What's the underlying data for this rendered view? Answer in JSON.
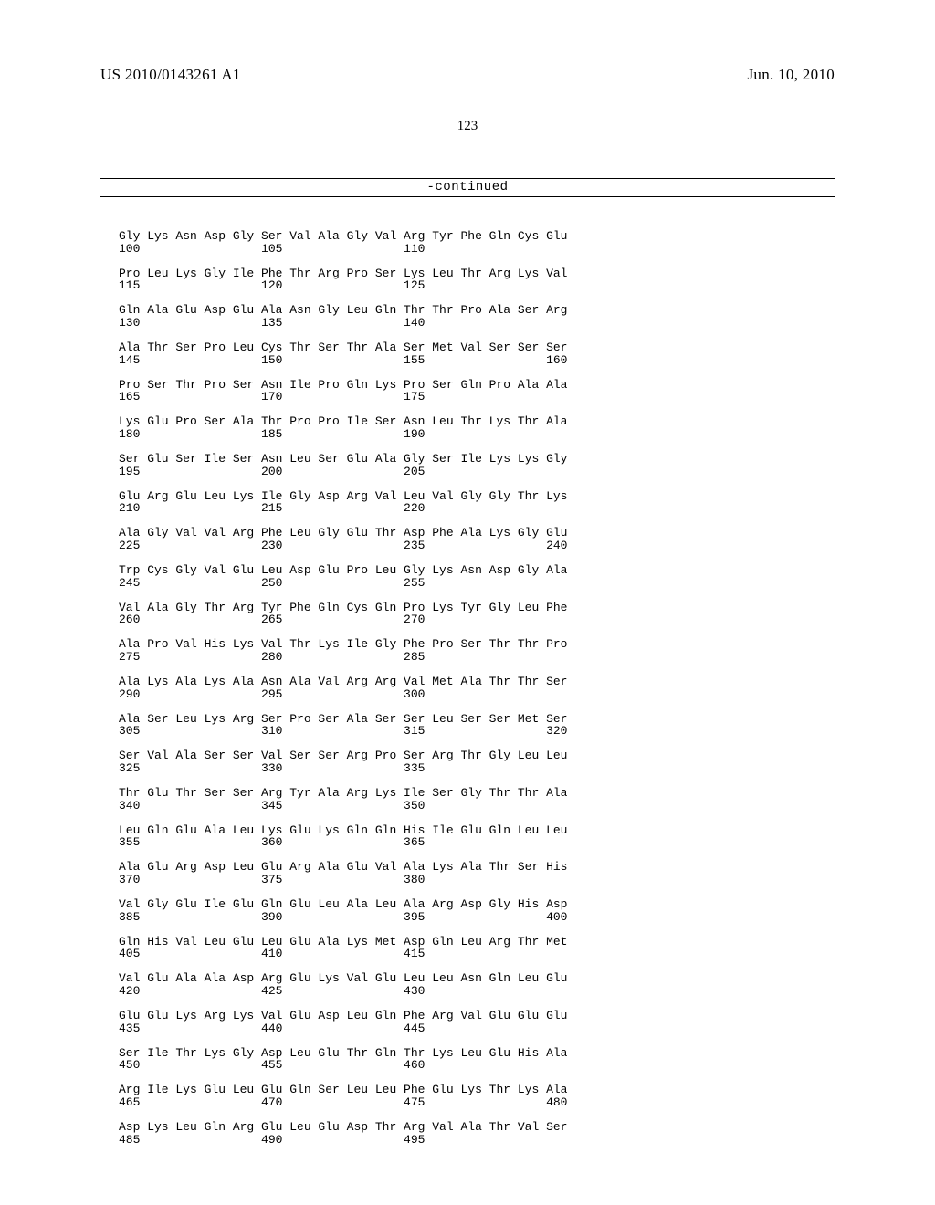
{
  "header": {
    "publication_number": "US 2010/0143261 A1",
    "publication_date": "Jun. 10, 2010"
  },
  "page_number": "123",
  "continued_label": "-continued",
  "font": {
    "serif_family": "Times New Roman",
    "mono_family": "Courier New",
    "header_size_pt": 12.5,
    "pagenum_size_pt": 11,
    "seq_size_pt": 10,
    "continued_size_pt": 10.5
  },
  "colors": {
    "text": "#000000",
    "background": "#ffffff",
    "rule": "#000000"
  },
  "sequence": {
    "residues_per_line": 16,
    "blocks": [
      {
        "aa": [
          "Gly",
          "Lys",
          "Asn",
          "Asp",
          "Gly",
          "Ser",
          "Val",
          "Ala",
          "Gly",
          "Val",
          "Arg",
          "Tyr",
          "Phe",
          "Gln",
          "Cys",
          "Glu"
        ],
        "positions": {
          "0": "100",
          "5": "105",
          "10": "110"
        }
      },
      {
        "aa": [
          "Pro",
          "Leu",
          "Lys",
          "Gly",
          "Ile",
          "Phe",
          "Thr",
          "Arg",
          "Pro",
          "Ser",
          "Lys",
          "Leu",
          "Thr",
          "Arg",
          "Lys",
          "Val"
        ],
        "positions": {
          "0": "115",
          "5": "120",
          "10": "125"
        }
      },
      {
        "aa": [
          "Gln",
          "Ala",
          "Glu",
          "Asp",
          "Glu",
          "Ala",
          "Asn",
          "Gly",
          "Leu",
          "Gln",
          "Thr",
          "Thr",
          "Pro",
          "Ala",
          "Ser",
          "Arg"
        ],
        "positions": {
          "0": "130",
          "5": "135",
          "10": "140"
        }
      },
      {
        "aa": [
          "Ala",
          "Thr",
          "Ser",
          "Pro",
          "Leu",
          "Cys",
          "Thr",
          "Ser",
          "Thr",
          "Ala",
          "Ser",
          "Met",
          "Val",
          "Ser",
          "Ser",
          "Ser"
        ],
        "positions": {
          "0": "145",
          "5": "150",
          "10": "155",
          "15": "160"
        }
      },
      {
        "aa": [
          "Pro",
          "Ser",
          "Thr",
          "Pro",
          "Ser",
          "Asn",
          "Ile",
          "Pro",
          "Gln",
          "Lys",
          "Pro",
          "Ser",
          "Gln",
          "Pro",
          "Ala",
          "Ala"
        ],
        "positions": {
          "0": "165",
          "5": "170",
          "10": "175"
        }
      },
      {
        "aa": [
          "Lys",
          "Glu",
          "Pro",
          "Ser",
          "Ala",
          "Thr",
          "Pro",
          "Pro",
          "Ile",
          "Ser",
          "Asn",
          "Leu",
          "Thr",
          "Lys",
          "Thr",
          "Ala"
        ],
        "positions": {
          "0": "180",
          "5": "185",
          "10": "190"
        }
      },
      {
        "aa": [
          "Ser",
          "Glu",
          "Ser",
          "Ile",
          "Ser",
          "Asn",
          "Leu",
          "Ser",
          "Glu",
          "Ala",
          "Gly",
          "Ser",
          "Ile",
          "Lys",
          "Lys",
          "Gly"
        ],
        "positions": {
          "0": "195",
          "5": "200",
          "10": "205"
        }
      },
      {
        "aa": [
          "Glu",
          "Arg",
          "Glu",
          "Leu",
          "Lys",
          "Ile",
          "Gly",
          "Asp",
          "Arg",
          "Val",
          "Leu",
          "Val",
          "Gly",
          "Gly",
          "Thr",
          "Lys"
        ],
        "positions": {
          "0": "210",
          "5": "215",
          "10": "220"
        }
      },
      {
        "aa": [
          "Ala",
          "Gly",
          "Val",
          "Val",
          "Arg",
          "Phe",
          "Leu",
          "Gly",
          "Glu",
          "Thr",
          "Asp",
          "Phe",
          "Ala",
          "Lys",
          "Gly",
          "Glu"
        ],
        "positions": {
          "0": "225",
          "5": "230",
          "10": "235",
          "15": "240"
        }
      },
      {
        "aa": [
          "Trp",
          "Cys",
          "Gly",
          "Val",
          "Glu",
          "Leu",
          "Asp",
          "Glu",
          "Pro",
          "Leu",
          "Gly",
          "Lys",
          "Asn",
          "Asp",
          "Gly",
          "Ala"
        ],
        "positions": {
          "0": "245",
          "5": "250",
          "10": "255"
        }
      },
      {
        "aa": [
          "Val",
          "Ala",
          "Gly",
          "Thr",
          "Arg",
          "Tyr",
          "Phe",
          "Gln",
          "Cys",
          "Gln",
          "Pro",
          "Lys",
          "Tyr",
          "Gly",
          "Leu",
          "Phe"
        ],
        "positions": {
          "0": "260",
          "5": "265",
          "10": "270"
        }
      },
      {
        "aa": [
          "Ala",
          "Pro",
          "Val",
          "His",
          "Lys",
          "Val",
          "Thr",
          "Lys",
          "Ile",
          "Gly",
          "Phe",
          "Pro",
          "Ser",
          "Thr",
          "Thr",
          "Pro"
        ],
        "positions": {
          "0": "275",
          "5": "280",
          "10": "285"
        }
      },
      {
        "aa": [
          "Ala",
          "Lys",
          "Ala",
          "Lys",
          "Ala",
          "Asn",
          "Ala",
          "Val",
          "Arg",
          "Arg",
          "Val",
          "Met",
          "Ala",
          "Thr",
          "Thr",
          "Ser"
        ],
        "positions": {
          "0": "290",
          "5": "295",
          "10": "300"
        }
      },
      {
        "aa": [
          "Ala",
          "Ser",
          "Leu",
          "Lys",
          "Arg",
          "Ser",
          "Pro",
          "Ser",
          "Ala",
          "Ser",
          "Ser",
          "Leu",
          "Ser",
          "Ser",
          "Met",
          "Ser"
        ],
        "positions": {
          "0": "305",
          "5": "310",
          "10": "315",
          "15": "320"
        }
      },
      {
        "aa": [
          "Ser",
          "Val",
          "Ala",
          "Ser",
          "Ser",
          "Val",
          "Ser",
          "Ser",
          "Arg",
          "Pro",
          "Ser",
          "Arg",
          "Thr",
          "Gly",
          "Leu",
          "Leu"
        ],
        "positions": {
          "0": "325",
          "5": "330",
          "10": "335"
        }
      },
      {
        "aa": [
          "Thr",
          "Glu",
          "Thr",
          "Ser",
          "Ser",
          "Arg",
          "Tyr",
          "Ala",
          "Arg",
          "Lys",
          "Ile",
          "Ser",
          "Gly",
          "Thr",
          "Thr",
          "Ala"
        ],
        "positions": {
          "0": "340",
          "5": "345",
          "10": "350"
        }
      },
      {
        "aa": [
          "Leu",
          "Gln",
          "Glu",
          "Ala",
          "Leu",
          "Lys",
          "Glu",
          "Lys",
          "Gln",
          "Gln",
          "His",
          "Ile",
          "Glu",
          "Gln",
          "Leu",
          "Leu"
        ],
        "positions": {
          "0": "355",
          "5": "360",
          "10": "365"
        }
      },
      {
        "aa": [
          "Ala",
          "Glu",
          "Arg",
          "Asp",
          "Leu",
          "Glu",
          "Arg",
          "Ala",
          "Glu",
          "Val",
          "Ala",
          "Lys",
          "Ala",
          "Thr",
          "Ser",
          "His"
        ],
        "positions": {
          "0": "370",
          "5": "375",
          "10": "380"
        }
      },
      {
        "aa": [
          "Val",
          "Gly",
          "Glu",
          "Ile",
          "Glu",
          "Gln",
          "Glu",
          "Leu",
          "Ala",
          "Leu",
          "Ala",
          "Arg",
          "Asp",
          "Gly",
          "His",
          "Asp"
        ],
        "positions": {
          "0": "385",
          "5": "390",
          "10": "395",
          "15": "400"
        }
      },
      {
        "aa": [
          "Gln",
          "His",
          "Val",
          "Leu",
          "Glu",
          "Leu",
          "Glu",
          "Ala",
          "Lys",
          "Met",
          "Asp",
          "Gln",
          "Leu",
          "Arg",
          "Thr",
          "Met"
        ],
        "positions": {
          "0": "405",
          "5": "410",
          "10": "415"
        }
      },
      {
        "aa": [
          "Val",
          "Glu",
          "Ala",
          "Ala",
          "Asp",
          "Arg",
          "Glu",
          "Lys",
          "Val",
          "Glu",
          "Leu",
          "Leu",
          "Asn",
          "Gln",
          "Leu",
          "Glu"
        ],
        "positions": {
          "0": "420",
          "5": "425",
          "10": "430"
        }
      },
      {
        "aa": [
          "Glu",
          "Glu",
          "Lys",
          "Arg",
          "Lys",
          "Val",
          "Glu",
          "Asp",
          "Leu",
          "Gln",
          "Phe",
          "Arg",
          "Val",
          "Glu",
          "Glu",
          "Glu"
        ],
        "positions": {
          "0": "435",
          "5": "440",
          "10": "445"
        }
      },
      {
        "aa": [
          "Ser",
          "Ile",
          "Thr",
          "Lys",
          "Gly",
          "Asp",
          "Leu",
          "Glu",
          "Thr",
          "Gln",
          "Thr",
          "Lys",
          "Leu",
          "Glu",
          "His",
          "Ala"
        ],
        "positions": {
          "0": "450",
          "5": "455",
          "10": "460"
        }
      },
      {
        "aa": [
          "Arg",
          "Ile",
          "Lys",
          "Glu",
          "Leu",
          "Glu",
          "Gln",
          "Ser",
          "Leu",
          "Leu",
          "Phe",
          "Glu",
          "Lys",
          "Thr",
          "Lys",
          "Ala"
        ],
        "positions": {
          "0": "465",
          "5": "470",
          "10": "475",
          "15": "480"
        }
      },
      {
        "aa": [
          "Asp",
          "Lys",
          "Leu",
          "Gln",
          "Arg",
          "Glu",
          "Leu",
          "Glu",
          "Asp",
          "Thr",
          "Arg",
          "Val",
          "Ala",
          "Thr",
          "Val",
          "Ser"
        ],
        "positions": {
          "0": "485",
          "5": "490",
          "10": "495"
        }
      }
    ]
  }
}
